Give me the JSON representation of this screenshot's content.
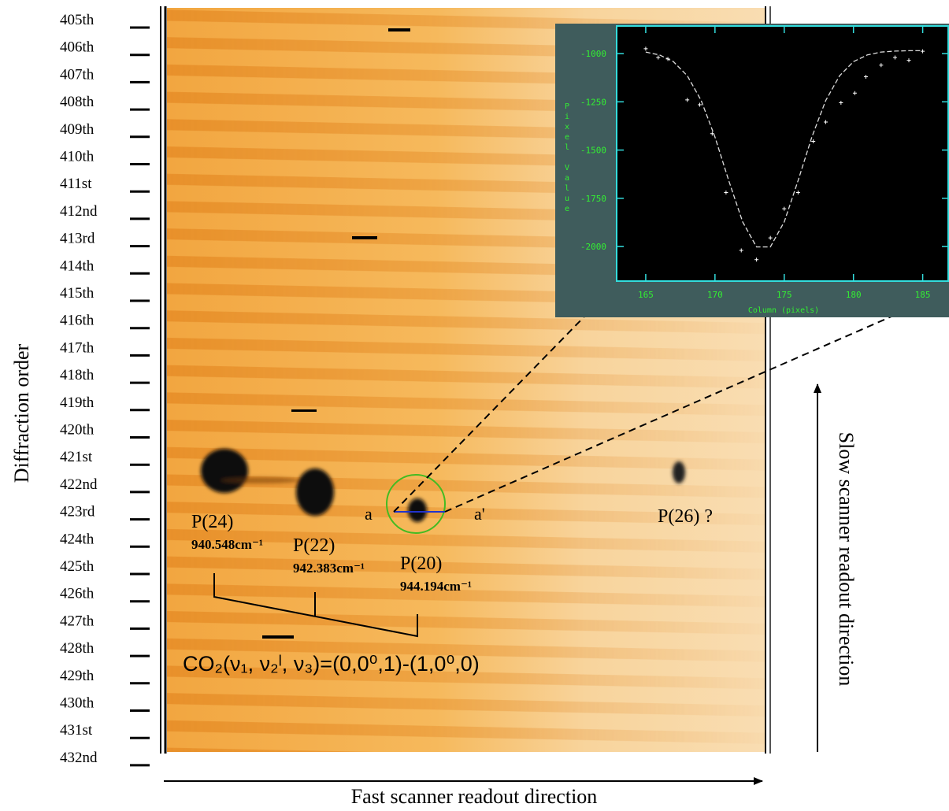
{
  "figure": {
    "y_axis_label": "Diffraction order",
    "x_direction_label": "Fast scanner readout direction",
    "y_direction_label": "Slow scanner readout direction",
    "diffraction_orders": [
      "405th",
      "406th",
      "407th",
      "408th",
      "409th",
      "410th",
      "411st",
      "412nd",
      "413rd",
      "414th",
      "415th",
      "416th",
      "417th",
      "418th",
      "419th",
      "420th",
      "421st",
      "422nd",
      "423rd",
      "424th",
      "425th",
      "426th",
      "427th",
      "428th",
      "429th",
      "430th",
      "431st",
      "432nd"
    ],
    "peaks": [
      {
        "label": "P(24)",
        "wavenumber": "940.548cm⁻¹"
      },
      {
        "label": "P(22)",
        "wavenumber": "942.383cm⁻¹"
      },
      {
        "label": "P(20)",
        "wavenumber": "944.194cm⁻¹"
      },
      {
        "label": "P(26) ?"
      }
    ],
    "cut_start": "a",
    "cut_end": "a'",
    "band_label": "CO₂(ν₁, ν₂ˡ, ν₃)=(0,0⁰,1)-(1,0⁰,0)"
  },
  "inset_plot": {
    "type": "scatter",
    "x_label": "Column (pixels)",
    "y_label": "Pixel Value",
    "xlim": [
      162.9,
      186.9
    ],
    "ylim": [
      -2179,
      -857
    ],
    "xticks": [
      165,
      170,
      175,
      180,
      185
    ],
    "yticks": [
      -1000,
      -1250,
      -1500,
      -1750,
      -2000
    ],
    "points": {
      "x": [
        165,
        165.9,
        166.6,
        168.0,
        168.9,
        169.8,
        170.8,
        171.9,
        173.0,
        174.0,
        175.0,
        176.0,
        177.1,
        178.0,
        179.1,
        180.1,
        180.9,
        182.0,
        183.0,
        184.0,
        185.0
      ],
      "y": [
        -975,
        -1020,
        -1028,
        -1240,
        -1265,
        -1415,
        -1720,
        -2020,
        -2068,
        -1955,
        -1804,
        -1720,
        -1455,
        -1355,
        -1255,
        -1205,
        -1120,
        -1060,
        -1020,
        -1035,
        -988
      ]
    },
    "fit": {
      "x": [
        165,
        166,
        167,
        168,
        169,
        170,
        171,
        172,
        173,
        174,
        175,
        176,
        177,
        178,
        179,
        180,
        181,
        182,
        183,
        184,
        185
      ],
      "y": [
        -992,
        -1007,
        -1042,
        -1115,
        -1243,
        -1432,
        -1659,
        -1872,
        -2002,
        -2002,
        -1872,
        -1659,
        -1432,
        -1243,
        -1115,
        -1042,
        -1007,
        -992,
        -987,
        -985,
        -985
      ]
    }
  }
}
